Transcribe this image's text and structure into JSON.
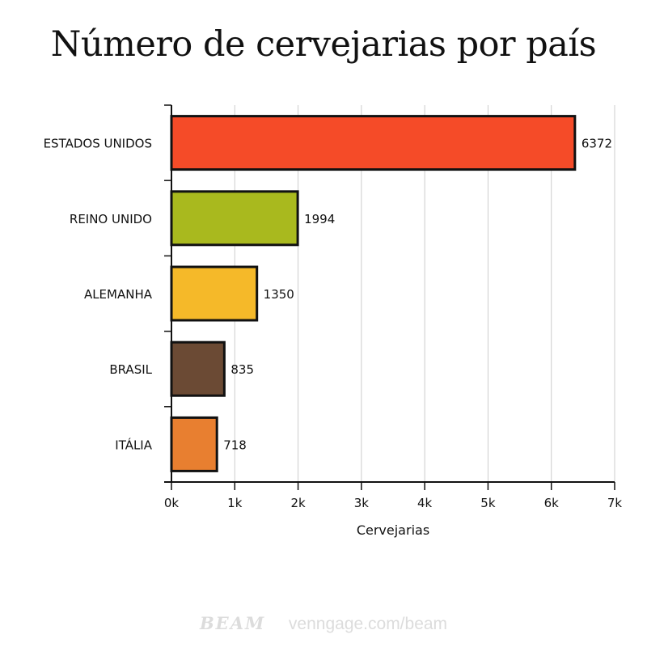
{
  "chart_data": {
    "type": "bar",
    "orientation": "horizontal",
    "title": "Número de cervejarias por país",
    "xlabel": "Cervejarias",
    "ylabel": "",
    "categories": [
      "ESTADOS UNIDOS",
      "REINO UNIDO",
      "ALEMANHA",
      "BRASIL",
      "ITÁLIA"
    ],
    "values": [
      6372,
      1994,
      1350,
      835,
      718
    ],
    "data_labels": [
      "6372",
      "1994",
      "1350",
      "835",
      "718"
    ],
    "colors": [
      "#f54b28",
      "#a9b91e",
      "#f5b929",
      "#6b4a34",
      "#e87f30"
    ],
    "xlim": [
      0,
      7000
    ],
    "xticks": [
      0,
      1000,
      2000,
      3000,
      4000,
      5000,
      6000,
      7000
    ],
    "xtick_labels": [
      "0k",
      "1k",
      "2k",
      "3k",
      "4k",
      "5k",
      "6k",
      "7k"
    ],
    "grid": "vertical",
    "legend": "none"
  },
  "footer": {
    "logo": "BEAM",
    "site": "venngage.com/beam"
  }
}
